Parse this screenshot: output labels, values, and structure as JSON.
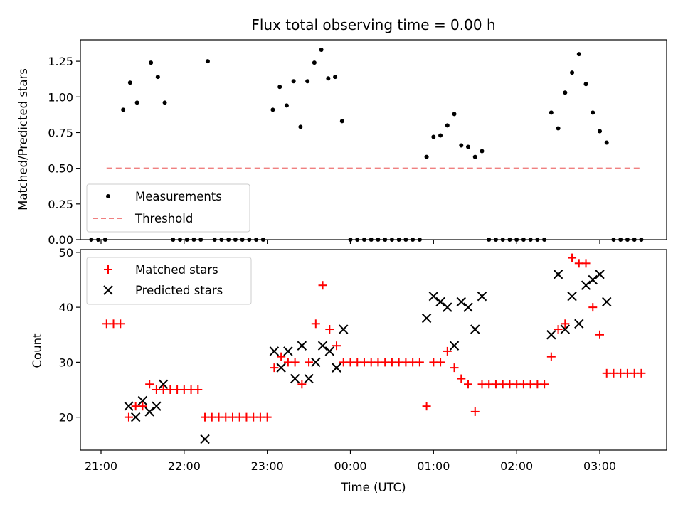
{
  "chart_data": [
    {
      "type": "scatter",
      "title": "Flux total observing time = 0.00 h",
      "ylabel": "Matched/Predicted stars",
      "xlabel": "",
      "ylim": [
        0,
        1.4
      ],
      "yticks": [
        "0.00",
        "0.25",
        "0.50",
        "0.75",
        "1.00",
        "1.25"
      ],
      "legend": {
        "placement": "lower-left",
        "entries": [
          "Measurements",
          "Threshold"
        ]
      },
      "series": [
        {
          "name": "Measurements",
          "color": "#000000",
          "marker": "dot",
          "points": [
            [
              "20:53",
              0
            ],
            [
              "20:58",
              0
            ],
            [
              "21:03",
              0
            ],
            [
              "21:16",
              0.91
            ],
            [
              "21:21",
              1.1
            ],
            [
              "21:26",
              0.96
            ],
            [
              "21:36",
              1.24
            ],
            [
              "21:41",
              1.14
            ],
            [
              "21:46",
              0.96
            ],
            [
              "21:52",
              0
            ],
            [
              "21:57",
              0
            ],
            [
              "22:02",
              0
            ],
            [
              "22:07",
              0
            ],
            [
              "22:12",
              0
            ],
            [
              "22:17",
              1.25
            ],
            [
              "22:22",
              0
            ],
            [
              "22:27",
              0
            ],
            [
              "22:32",
              0
            ],
            [
              "22:37",
              0
            ],
            [
              "22:42",
              0
            ],
            [
              "22:47",
              0
            ],
            [
              "22:52",
              0
            ],
            [
              "22:57",
              0
            ],
            [
              "23:04",
              0.91
            ],
            [
              "23:09",
              1.07
            ],
            [
              "23:14",
              0.94
            ],
            [
              "23:19",
              1.11
            ],
            [
              "23:24",
              0.79
            ],
            [
              "23:29",
              1.11
            ],
            [
              "23:34",
              1.24
            ],
            [
              "23:39",
              1.33
            ],
            [
              "23:44",
              1.13
            ],
            [
              "23:49",
              1.14
            ],
            [
              "23:54",
              0.83
            ],
            [
              "00:00",
              0
            ],
            [
              "00:05",
              0
            ],
            [
              "00:10",
              0
            ],
            [
              "00:15",
              0
            ],
            [
              "00:20",
              0
            ],
            [
              "00:25",
              0
            ],
            [
              "00:30",
              0
            ],
            [
              "00:35",
              0
            ],
            [
              "00:40",
              0
            ],
            [
              "00:45",
              0
            ],
            [
              "00:50",
              0
            ],
            [
              "00:55",
              0.58
            ],
            [
              "01:00",
              0.72
            ],
            [
              "01:05",
              0.73
            ],
            [
              "01:10",
              0.8
            ],
            [
              "01:15",
              0.88
            ],
            [
              "01:20",
              0.66
            ],
            [
              "01:25",
              0.65
            ],
            [
              "01:30",
              0.58
            ],
            [
              "01:35",
              0.62
            ],
            [
              "01:40",
              0
            ],
            [
              "01:45",
              0
            ],
            [
              "01:50",
              0
            ],
            [
              "01:55",
              0
            ],
            [
              "02:00",
              0
            ],
            [
              "02:05",
              0
            ],
            [
              "02:10",
              0
            ],
            [
              "02:15",
              0
            ],
            [
              "02:20",
              0
            ],
            [
              "02:25",
              0.89
            ],
            [
              "02:30",
              0.78
            ],
            [
              "02:35",
              1.03
            ],
            [
              "02:40",
              1.17
            ],
            [
              "02:45",
              1.3
            ],
            [
              "02:50",
              1.09
            ],
            [
              "02:55",
              0.89
            ],
            [
              "03:00",
              0.76
            ],
            [
              "03:05",
              0.68
            ],
            [
              "03:10",
              0
            ],
            [
              "03:15",
              0
            ],
            [
              "03:20",
              0
            ],
            [
              "03:25",
              0
            ],
            [
              "03:30",
              0
            ]
          ]
        },
        {
          "name": "Threshold",
          "color": "#f08080",
          "line": "dashed",
          "points": [
            [
              "21:04",
              0.5
            ],
            [
              "03:30",
              0.5
            ]
          ]
        }
      ]
    },
    {
      "type": "scatter",
      "title": "",
      "ylabel": "Count",
      "xlabel": "Time (UTC)",
      "ylim": [
        14,
        50.5
      ],
      "yticks": [
        "20",
        "30",
        "40",
        "50"
      ],
      "xticks": [
        "21:00",
        "22:00",
        "23:00",
        "00:00",
        "01:00",
        "02:00",
        "03:00"
      ],
      "legend": {
        "placement": "upper-left",
        "entries": [
          "Matched stars",
          "Predicted stars"
        ]
      },
      "series": [
        {
          "name": "Matched stars",
          "color": "#ff0000",
          "marker": "plus",
          "points": [
            [
              "21:04",
              37
            ],
            [
              "21:09",
              37
            ],
            [
              "21:14",
              37
            ],
            [
              "21:20",
              20
            ],
            [
              "21:25",
              22
            ],
            [
              "21:30",
              22
            ],
            [
              "21:35",
              26
            ],
            [
              "21:40",
              25
            ],
            [
              "21:45",
              25
            ],
            [
              "21:50",
              25
            ],
            [
              "21:55",
              25
            ],
            [
              "22:00",
              25
            ],
            [
              "22:05",
              25
            ],
            [
              "22:10",
              25
            ],
            [
              "22:15",
              20
            ],
            [
              "22:20",
              20
            ],
            [
              "22:25",
              20
            ],
            [
              "22:30",
              20
            ],
            [
              "22:35",
              20
            ],
            [
              "22:40",
              20
            ],
            [
              "22:45",
              20
            ],
            [
              "22:50",
              20
            ],
            [
              "22:55",
              20
            ],
            [
              "23:00",
              20
            ],
            [
              "23:05",
              29
            ],
            [
              "23:10",
              31
            ],
            [
              "23:15",
              30
            ],
            [
              "23:20",
              30
            ],
            [
              "23:25",
              26
            ],
            [
              "23:30",
              30
            ],
            [
              "23:35",
              37
            ],
            [
              "23:40",
              44
            ],
            [
              "23:45",
              36
            ],
            [
              "23:50",
              33
            ],
            [
              "23:55",
              30
            ],
            [
              "00:00",
              30
            ],
            [
              "00:05",
              30
            ],
            [
              "00:10",
              30
            ],
            [
              "00:15",
              30
            ],
            [
              "00:20",
              30
            ],
            [
              "00:25",
              30
            ],
            [
              "00:30",
              30
            ],
            [
              "00:35",
              30
            ],
            [
              "00:40",
              30
            ],
            [
              "00:45",
              30
            ],
            [
              "00:50",
              30
            ],
            [
              "00:55",
              22
            ],
            [
              "01:00",
              30
            ],
            [
              "01:05",
              30
            ],
            [
              "01:10",
              32
            ],
            [
              "01:15",
              29
            ],
            [
              "01:20",
              27
            ],
            [
              "01:25",
              26
            ],
            [
              "01:30",
              21
            ],
            [
              "01:35",
              26
            ],
            [
              "01:40",
              26
            ],
            [
              "01:45",
              26
            ],
            [
              "01:50",
              26
            ],
            [
              "01:55",
              26
            ],
            [
              "02:00",
              26
            ],
            [
              "02:05",
              26
            ],
            [
              "02:10",
              26
            ],
            [
              "02:15",
              26
            ],
            [
              "02:20",
              26
            ],
            [
              "02:25",
              31
            ],
            [
              "02:30",
              36
            ],
            [
              "02:35",
              37
            ],
            [
              "02:40",
              49
            ],
            [
              "02:45",
              48
            ],
            [
              "02:50",
              48
            ],
            [
              "02:55",
              40
            ],
            [
              "03:00",
              35
            ],
            [
              "03:05",
              28
            ],
            [
              "03:10",
              28
            ],
            [
              "03:15",
              28
            ],
            [
              "03:20",
              28
            ],
            [
              "03:25",
              28
            ],
            [
              "03:30",
              28
            ]
          ]
        },
        {
          "name": "Predicted stars",
          "color": "#000000",
          "marker": "x",
          "points": [
            [
              "21:20",
              22
            ],
            [
              "21:25",
              20
            ],
            [
              "21:30",
              23
            ],
            [
              "21:35",
              21
            ],
            [
              "21:40",
              22
            ],
            [
              "21:45",
              26
            ],
            [
              "22:15",
              16
            ],
            [
              "23:05",
              32
            ],
            [
              "23:10",
              29
            ],
            [
              "23:15",
              32
            ],
            [
              "23:20",
              27
            ],
            [
              "23:25",
              33
            ],
            [
              "23:30",
              27
            ],
            [
              "23:35",
              30
            ],
            [
              "23:40",
              33
            ],
            [
              "23:45",
              32
            ],
            [
              "23:50",
              29
            ],
            [
              "23:55",
              36
            ],
            [
              "00:55",
              38
            ],
            [
              "01:00",
              42
            ],
            [
              "01:05",
              41
            ],
            [
              "01:10",
              40
            ],
            [
              "01:15",
              33
            ],
            [
              "01:20",
              41
            ],
            [
              "01:25",
              40
            ],
            [
              "01:30",
              36
            ],
            [
              "01:35",
              42
            ],
            [
              "02:25",
              35
            ],
            [
              "02:30",
              46
            ],
            [
              "02:35",
              36
            ],
            [
              "02:40",
              42
            ],
            [
              "02:45",
              37
            ],
            [
              "02:50",
              44
            ],
            [
              "02:55",
              45
            ],
            [
              "03:00",
              46
            ],
            [
              "03:05",
              41
            ]
          ]
        }
      ]
    }
  ]
}
